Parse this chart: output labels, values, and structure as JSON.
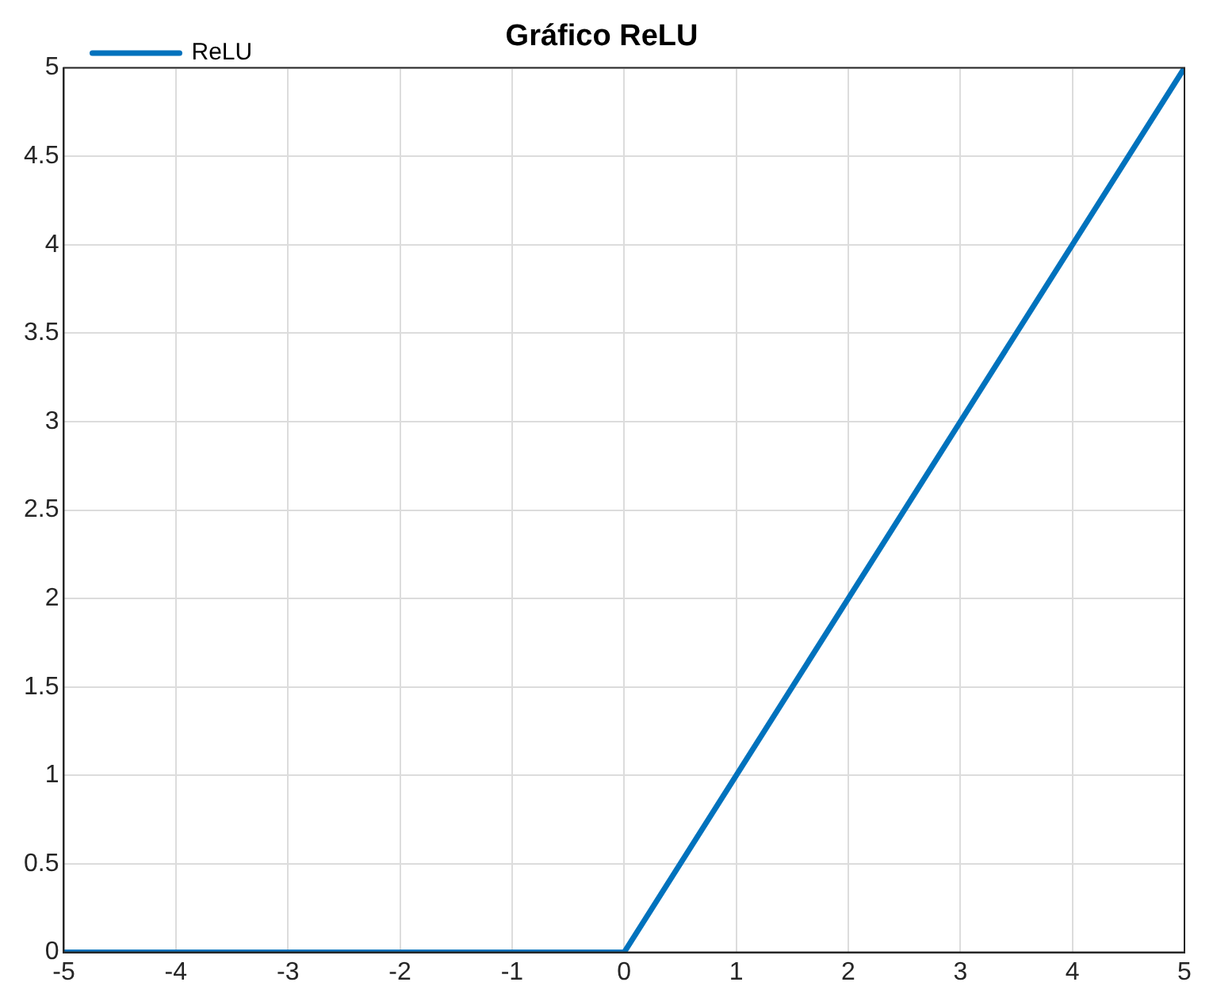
{
  "chart_data": {
    "type": "line",
    "title": "Gráfico ReLU",
    "x": [
      -5,
      0,
      5
    ],
    "series": [
      {
        "name": "ReLU",
        "color": "#0072bd",
        "values": [
          0,
          0,
          5
        ]
      }
    ],
    "xlim": [
      -5,
      5
    ],
    "xticks": [
      -5,
      -4,
      -3,
      -2,
      -1,
      0,
      1,
      2,
      3,
      4,
      5
    ],
    "ylim": [
      0,
      5
    ],
    "yticks": [
      0,
      0.5,
      1,
      1.5,
      2,
      2.5,
      3,
      3.5,
      4,
      4.5,
      5
    ],
    "grid": true,
    "legend": "top left",
    "line_style": "solid",
    "marker": "none"
  }
}
